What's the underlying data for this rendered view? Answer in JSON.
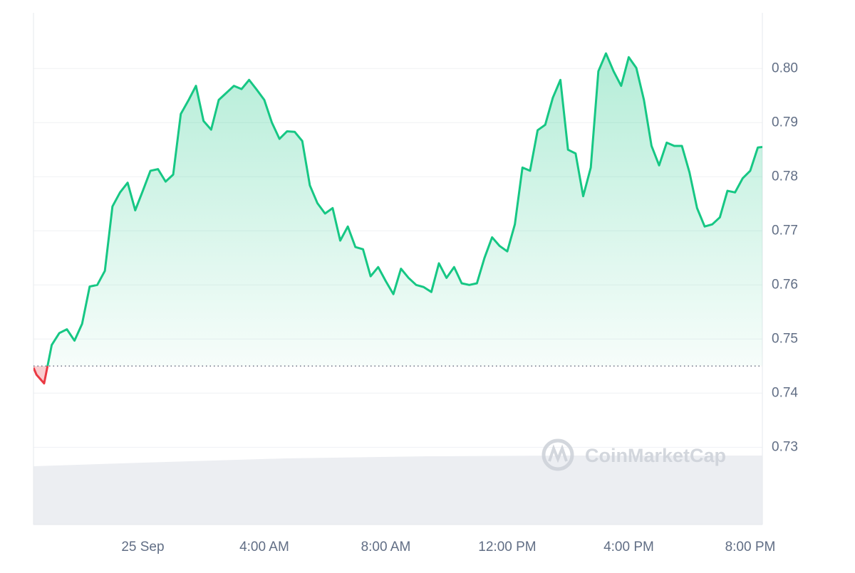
{
  "chart_data": {
    "type": "line",
    "x": [
      -3.6,
      -3.5,
      -3.25,
      -3.0,
      -2.75,
      -2.5,
      -2.25,
      -2.0,
      -1.75,
      -1.5,
      -1.25,
      -1.0,
      -0.75,
      -0.5,
      -0.25,
      0,
      0.25,
      0.5,
      0.75,
      1.0,
      1.25,
      1.5,
      1.75,
      2.0,
      2.25,
      2.5,
      2.75,
      3.0,
      3.25,
      3.5,
      3.75,
      4.0,
      4.25,
      4.5,
      4.75,
      5.0,
      5.25,
      5.5,
      5.75,
      6.0,
      6.25,
      6.5,
      6.75,
      7.0,
      7.25,
      7.5,
      7.75,
      8.0,
      8.25,
      8.5,
      8.75,
      9.0,
      9.25,
      9.5,
      9.75,
      10.0,
      10.25,
      10.5,
      10.75,
      11.0,
      11.25,
      11.5,
      11.75,
      12.0,
      12.25,
      12.5,
      12.75,
      13.0,
      13.25,
      13.5,
      13.75,
      14.0,
      14.25,
      14.5,
      14.75,
      15.0,
      15.25,
      15.5,
      15.75,
      16.0,
      16.25,
      16.5,
      16.75,
      17.0,
      17.25,
      17.5,
      17.75,
      18.0,
      18.25,
      18.5,
      18.75,
      19.0,
      19.25,
      19.5,
      19.75,
      20.0,
      20.25,
      20.4
    ],
    "values": [
      0.7447,
      0.7434,
      0.7418,
      0.7489,
      0.7511,
      0.7518,
      0.7497,
      0.7528,
      0.7597,
      0.76,
      0.7626,
      0.7745,
      0.7771,
      0.7789,
      0.7738,
      0.7774,
      0.7811,
      0.7814,
      0.7791,
      0.7804,
      0.7916,
      0.7941,
      0.7968,
      0.7903,
      0.7887,
      0.7942,
      0.7955,
      0.7968,
      0.7962,
      0.7979,
      0.7961,
      0.7942,
      0.79,
      0.787,
      0.7884,
      0.7883,
      0.7866,
      0.7784,
      0.7751,
      0.7732,
      0.7742,
      0.7682,
      0.7708,
      0.767,
      0.7666,
      0.7616,
      0.7633,
      0.7607,
      0.7583,
      0.763,
      0.7613,
      0.76,
      0.7596,
      0.7587,
      0.764,
      0.7613,
      0.7633,
      0.7603,
      0.76,
      0.7603,
      0.765,
      0.7688,
      0.7672,
      0.7662,
      0.7712,
      0.7817,
      0.7811,
      0.7886,
      0.7896,
      0.7946,
      0.7979,
      0.785,
      0.7843,
      0.7764,
      0.7817,
      0.7995,
      0.8028,
      0.7995,
      0.7968,
      0.8021,
      0.8001,
      0.7942,
      0.7857,
      0.7821,
      0.7863,
      0.7857,
      0.7857,
      0.7808,
      0.7742,
      0.7708,
      0.7712,
      0.7725,
      0.7774,
      0.7771,
      0.7797,
      0.7811,
      0.7854,
      0.7855
    ],
    "color": "#16c784",
    "color_below": "#ea3943",
    "baseline": 0.745,
    "xlim": [
      -3.6,
      20.4
    ],
    "xticks": [
      {
        "value": 0,
        "label": "25 Sep"
      },
      {
        "value": 4,
        "label": "4:00 AM"
      },
      {
        "value": 8,
        "label": "8:00 AM"
      },
      {
        "value": 12,
        "label": "12:00 PM"
      },
      {
        "value": 16,
        "label": "4:00 PM"
      },
      {
        "value": 20,
        "label": "8:00 PM"
      }
    ],
    "ylim": [
      0.7157,
      0.8103
    ],
    "yticks": [
      0.73,
      0.74,
      0.75,
      0.76,
      0.77,
      0.78,
      0.79,
      {
        "value": 0.8,
        "label": "0.80"
      }
    ],
    "grid": true,
    "watermark": "CoinMarketCap"
  }
}
